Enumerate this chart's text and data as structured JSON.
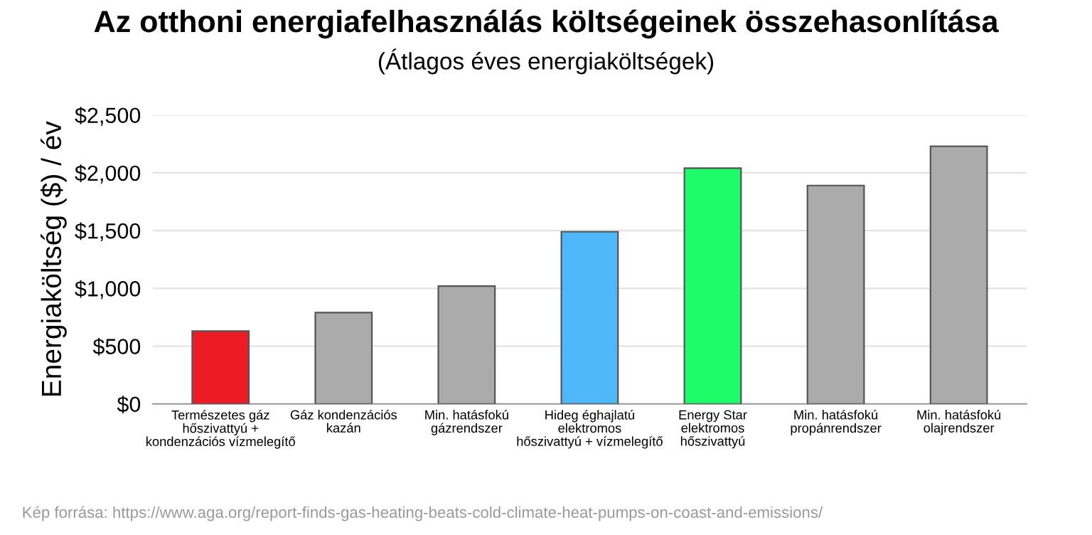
{
  "chart_data": {
    "type": "bar",
    "title": "Az otthoni energiafelhasználás költségeinek összehasonlítása",
    "subtitle": "(Átlagos éves energiaköltségek)",
    "ylabel": "Energiaköltség ($) / év",
    "categories": [
      "Természetes gáz\nhőszivattyú +\nkondenzációs vízmelegítő",
      "Gáz kondenzációs\nkazán",
      "Min. hatásfokú\ngázrendszer",
      "Hideg éghajlatú\nelektromos\nhőszivattyú + vízmelegítő",
      "Energy Star\nelektromos\nhőszivattyú",
      "Min. hatásfokú\npropánrendszer",
      "Min. hatásfokú\nolajrendszer"
    ],
    "values": [
      630,
      790,
      1020,
      1490,
      2040,
      1890,
      2230
    ],
    "colors": [
      "#ed1c24",
      "#ababab",
      "#ababab",
      "#4fb8fb",
      "#1ffc6a",
      "#ababab",
      "#ababab"
    ],
    "ylim": [
      0,
      2500
    ],
    "yticks": [
      {
        "value": 0,
        "label": "$0"
      },
      {
        "value": 500,
        "label": "$500"
      },
      {
        "value": 1000,
        "label": "$1,000"
      },
      {
        "value": 1500,
        "label": "$1,500"
      },
      {
        "value": 2000,
        "label": "$2,000"
      },
      {
        "value": 2500,
        "label": "$2,500"
      }
    ],
    "grid": "y",
    "annotations": [
      "Kép forrása: https://www.aga.org/report-finds-gas-heating-beats-cold-climate-heat-pumps-on-coast-and-emissions/"
    ]
  }
}
